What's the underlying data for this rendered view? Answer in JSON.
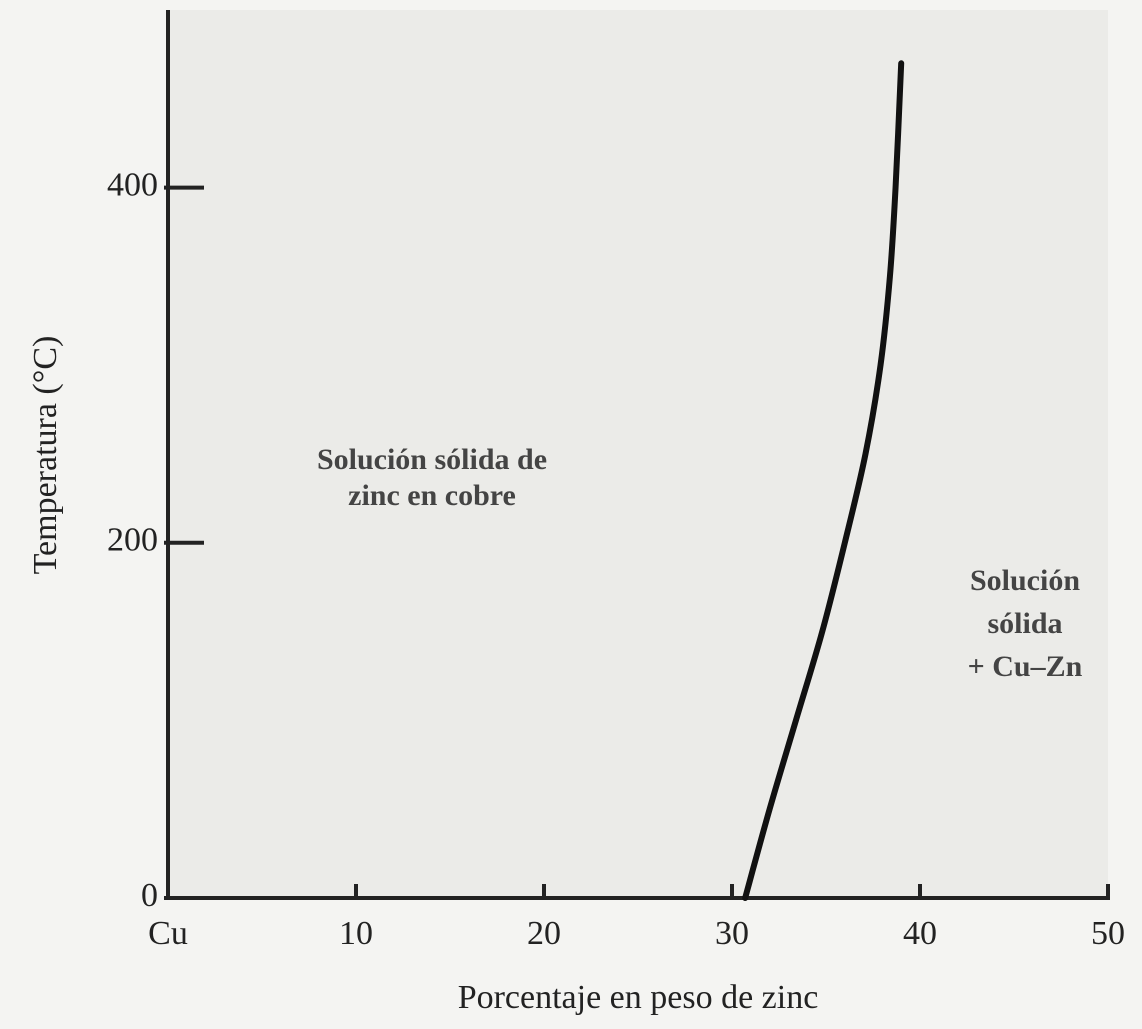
{
  "chart_data": {
    "type": "line",
    "xlabel": "Porcentaje en peso de zinc",
    "ylabel": "Temperatura (°C)",
    "x": [
      30.7,
      32.0,
      33.4,
      34.8,
      36.0,
      37.1,
      37.9,
      38.4,
      38.7,
      39.0
    ],
    "series": [
      {
        "color": "#111111",
        "values": [
          0,
          50,
          100,
          150,
          200,
          250,
          300,
          350,
          400,
          470
        ]
      }
    ],
    "xlim": [
      0,
      50
    ],
    "ylim": [
      0,
      500
    ],
    "xticks": [
      {
        "value": 0,
        "label": "Cu"
      },
      10,
      20,
      30,
      40,
      50
    ],
    "yticks": [
      0,
      200,
      400
    ],
    "grid": false,
    "annotations": [
      {
        "lines": [
          "Solución sólida de",
          "zinc en cobre"
        ]
      },
      {
        "lines": [
          "Solución",
          "sólida",
          "+ Cu–Zn"
        ]
      }
    ]
  }
}
